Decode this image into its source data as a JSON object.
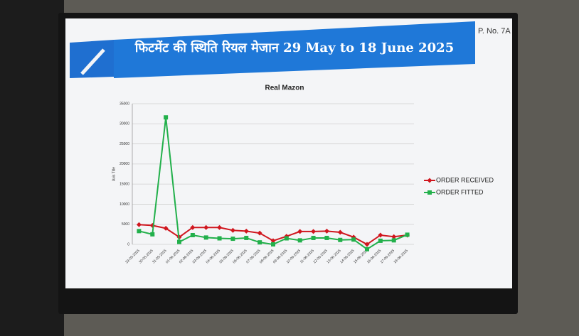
{
  "header": {
    "title": "फिटमेंट की स्थिति रियल मेजान 29 May to 18 June 2025",
    "page": "P. No. 7A"
  },
  "chart_data": {
    "type": "line",
    "title": "Real Mazon",
    "y_label": "Axis Title",
    "categories": [
      "29-05-2025",
      "30-05-2025",
      "31-05-2025",
      "01-06-2025",
      "02-06-2025",
      "03-06-2025",
      "04-06-2025",
      "05-06-2025",
      "06-06-2025",
      "07-06-2025",
      "08-06-2025",
      "09-06-2025",
      "10-06-2025",
      "11-06-2025",
      "12-06-2025",
      "13-06-2025",
      "14-06-2025",
      "15-06-2025",
      "16-06-2025",
      "17-06-2025",
      "18-06-2025"
    ],
    "series": [
      {
        "name": "ORDER RECEIVED",
        "color": "#d0161e",
        "marker": "diamond",
        "values": [
          4900,
          4700,
          4000,
          1800,
          4200,
          4200,
          4200,
          3500,
          3300,
          2800,
          900,
          2000,
          3200,
          3200,
          3300,
          3000,
          1800,
          0,
          2300,
          1900,
          2300
        ]
      },
      {
        "name": "ORDER FITTED",
        "color": "#22b04b",
        "marker": "square",
        "values": [
          3300,
          2500,
          31600,
          600,
          2300,
          1700,
          1500,
          1400,
          1600,
          500,
          0,
          1500,
          1000,
          1600,
          1600,
          1100,
          1200,
          -1200,
          900,
          1000,
          2400
        ]
      }
    ],
    "ylim": [
      0,
      35000
    ],
    "yticks": [
      0,
      5000,
      10000,
      15000,
      20000,
      25000,
      30000,
      35000
    ],
    "grid": true,
    "legend": "right"
  }
}
